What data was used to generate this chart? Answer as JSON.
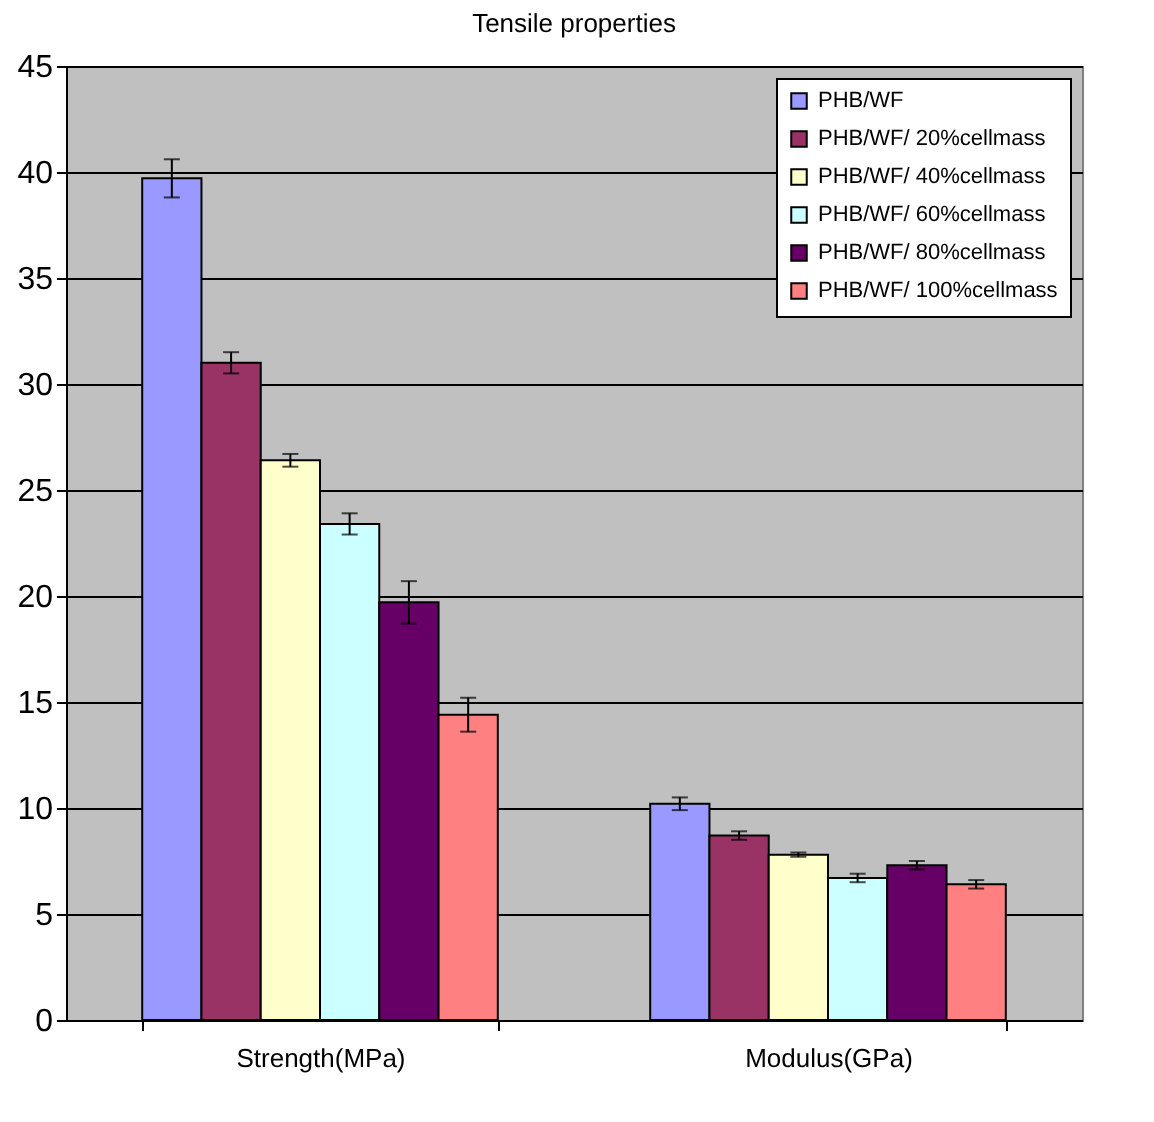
{
  "chart_data": {
    "type": "bar",
    "title": "Tensile properties",
    "categories": [
      "Strength(MPa)",
      "Modulus(GPa)"
    ],
    "series": [
      {
        "name": "PHB/WF",
        "color": "#9999ff",
        "values": [
          39.7,
          10.2
        ],
        "errors": [
          0.9,
          0.3
        ]
      },
      {
        "name": "PHB/WF/ 20%cellmass",
        "color": "#993366",
        "values": [
          31.0,
          8.7
        ],
        "errors": [
          0.5,
          0.2
        ]
      },
      {
        "name": "PHB/WF/ 40%cellmass",
        "color": "#ffffcc",
        "values": [
          26.4,
          7.8
        ],
        "errors": [
          0.3,
          0.1
        ]
      },
      {
        "name": "PHB/WF/ 60%cellmass",
        "color": "#ccffff",
        "values": [
          23.4,
          6.7
        ],
        "errors": [
          0.5,
          0.2
        ]
      },
      {
        "name": "PHB/WF/ 80%cellmass",
        "color": "#660066",
        "values": [
          19.7,
          7.3
        ],
        "errors": [
          1.0,
          0.2
        ]
      },
      {
        "name": "PHB/WF/ 100%cellmass",
        "color": "#ff8080",
        "values": [
          14.4,
          6.4
        ],
        "errors": [
          0.8,
          0.2
        ]
      }
    ],
    "ylim": [
      0,
      45
    ],
    "yticks": [
      0,
      5,
      10,
      15,
      20,
      25,
      30,
      35,
      40,
      45
    ],
    "grid": "y",
    "legend": "top right"
  }
}
